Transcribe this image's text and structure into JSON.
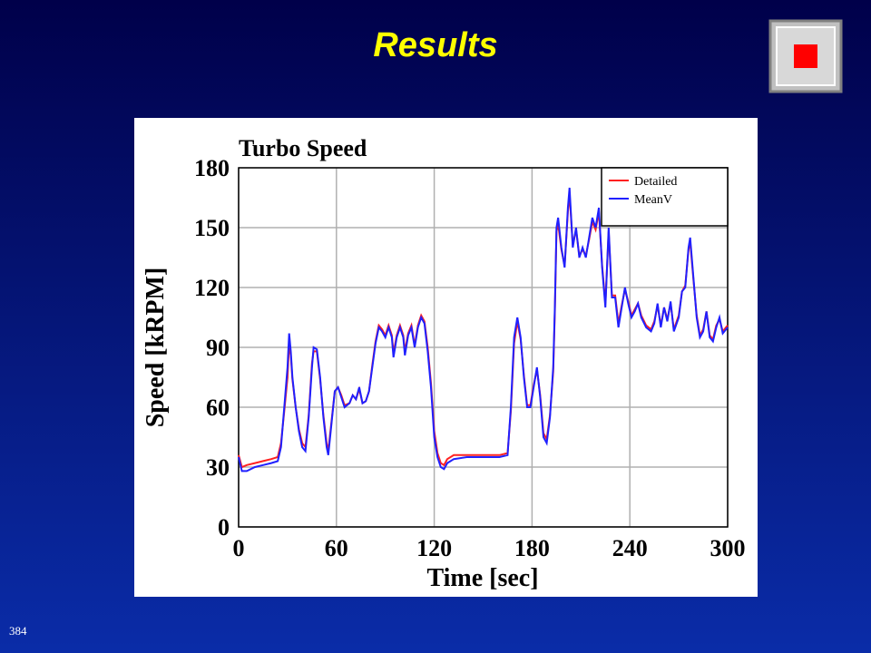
{
  "slide": {
    "title": "Results",
    "page": "384"
  },
  "chart_data": {
    "type": "line",
    "title": "Turbo Speed",
    "xlabel": "Time [sec]",
    "ylabel": "Speed [kRPM]",
    "xlim": [
      0,
      300
    ],
    "xticks": [
      0,
      60,
      120,
      180,
      240,
      300
    ],
    "ylim": [
      0,
      180
    ],
    "yticks": [
      0,
      30,
      60,
      90,
      120,
      150,
      180
    ],
    "grid": true,
    "legend": "upper right",
    "x": [
      0,
      2,
      5,
      10,
      15,
      20,
      24,
      26,
      28,
      30,
      31,
      32,
      33,
      35,
      37,
      39,
      41,
      43,
      45,
      46,
      48,
      50,
      52,
      54,
      55,
      57,
      59,
      61,
      63,
      65,
      68,
      70,
      72,
      74,
      76,
      78,
      80,
      82,
      84,
      86,
      88,
      90,
      92,
      94,
      95,
      97,
      99,
      101,
      102,
      104,
      106,
      108,
      110,
      112,
      114,
      116,
      118,
      120,
      122,
      124,
      126,
      128,
      132,
      140,
      150,
      160,
      165,
      167,
      169,
      171,
      173,
      175,
      177,
      179,
      181,
      183,
      185,
      187,
      189,
      191,
      193,
      194,
      195,
      196,
      198,
      200,
      202,
      203,
      205,
      207,
      209,
      211,
      213,
      215,
      217,
      219,
      221,
      223,
      225,
      227,
      229,
      231,
      233,
      235,
      237,
      239,
      241,
      243,
      245,
      247,
      250,
      253,
      255,
      257,
      259,
      261,
      263,
      265,
      267,
      270,
      272,
      274,
      276,
      277,
      279,
      281,
      283,
      285,
      287,
      289,
      291,
      293,
      295,
      297,
      300
    ],
    "series": [
      {
        "name": "Detailed",
        "color": "#ff2020",
        "values": [
          36,
          30,
          31,
          32,
          33,
          34,
          35,
          42,
          58,
          75,
          92,
          86,
          74,
          60,
          49,
          42,
          40,
          56,
          82,
          88,
          88,
          74,
          56,
          42,
          38,
          53,
          68,
          70,
          66,
          61,
          62,
          66,
          64,
          69,
          62,
          63,
          68,
          81,
          93,
          101,
          99,
          96,
          101,
          96,
          87,
          96,
          101,
          96,
          88,
          97,
          101,
          91,
          101,
          106,
          103,
          90,
          72,
          48,
          37,
          32,
          31,
          34,
          36,
          36,
          36,
          36,
          37,
          58,
          92,
          103,
          94,
          76,
          61,
          61,
          71,
          79,
          66,
          47,
          44,
          56,
          78,
          108,
          148,
          152,
          139,
          131,
          158,
          167,
          141,
          149,
          136,
          139,
          136,
          144,
          153,
          149,
          158,
          131,
          112,
          148,
          116,
          116,
          102,
          111,
          119,
          113,
          106,
          109,
          112,
          106,
          101,
          99,
          103,
          111,
          101,
          110,
          104,
          112,
          99,
          106,
          118,
          121,
          139,
          143,
          124,
          106,
          96,
          99,
          108,
          96,
          94,
          101,
          104,
          98,
          101
        ]
      },
      {
        "name": "MeanV",
        "color": "#2020ff",
        "values": [
          35,
          28,
          28,
          30,
          31,
          32,
          33,
          40,
          60,
          80,
          97,
          88,
          75,
          60,
          48,
          40,
          38,
          55,
          80,
          90,
          89,
          75,
          55,
          40,
          36,
          52,
          68,
          70,
          65,
          60,
          62,
          66,
          64,
          70,
          62,
          63,
          68,
          80,
          92,
          100,
          98,
          95,
          100,
          95,
          85,
          95,
          100,
          95,
          86,
          96,
          100,
          90,
          100,
          105,
          102,
          88,
          70,
          45,
          35,
          30,
          29,
          32,
          34,
          35,
          35,
          35,
          36,
          60,
          95,
          105,
          95,
          75,
          60,
          60,
          70,
          80,
          65,
          45,
          42,
          55,
          80,
          110,
          150,
          155,
          140,
          130,
          160,
          170,
          140,
          150,
          135,
          140,
          135,
          145,
          155,
          150,
          160,
          130,
          110,
          150,
          115,
          115,
          100,
          110,
          120,
          112,
          105,
          108,
          112,
          105,
          100,
          98,
          102,
          112,
          100,
          110,
          103,
          113,
          98,
          105,
          118,
          120,
          140,
          145,
          125,
          105,
          95,
          98,
          108,
          95,
          93,
          100,
          105,
          97,
          100
        ]
      }
    ]
  }
}
